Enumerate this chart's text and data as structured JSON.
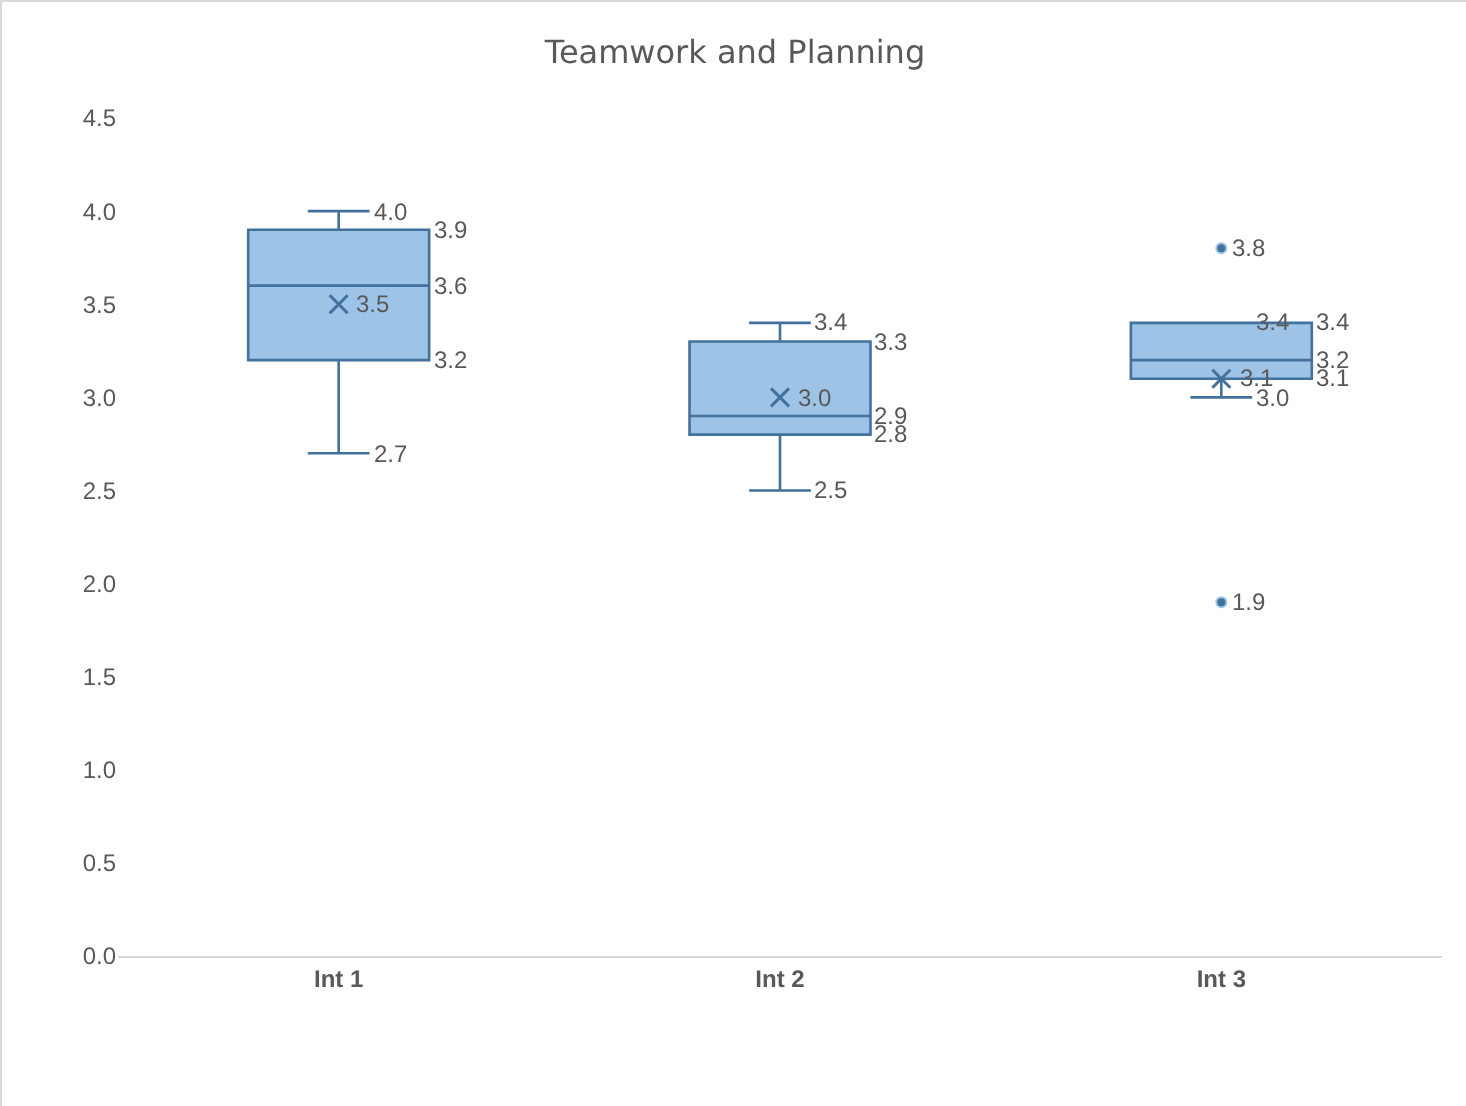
{
  "chart_data": {
    "type": "box",
    "title": "Teamwork and Planning",
    "categories": [
      "Int 1",
      "Int 2",
      "Int 3"
    ],
    "boxes": [
      {
        "low": 2.7,
        "q1": 3.2,
        "median": 3.6,
        "q3": 3.9,
        "high": 4.0,
        "mean": 3.5
      },
      {
        "low": 2.5,
        "q1": 2.8,
        "median": 2.9,
        "q3": 3.3,
        "high": 3.4,
        "mean": 3.0
      },
      {
        "low": 3.0,
        "q1": 3.1,
        "median": 3.2,
        "q3": 3.4,
        "high": 3.4,
        "mean": 3.1,
        "outliers": [
          3.8,
          1.9
        ]
      }
    ],
    "color": "#9dc3e6",
    "ylim": [
      0,
      4.5
    ],
    "yticks": [
      {
        "value": 0,
        "label": "0.0"
      },
      0.5,
      {
        "value": 1,
        "label": "1.0"
      },
      1.5,
      {
        "value": 2,
        "label": "2.0"
      },
      2.5,
      {
        "value": 3,
        "label": "3.0"
      },
      3.5,
      {
        "value": 4,
        "label": "4.0"
      },
      4.5
    ],
    "grid": false,
    "annotations": [
      "2.7",
      "3.2",
      "3.6",
      "3.9",
      "4.0",
      "3.5",
      "2.5",
      "2.8",
      "2.9",
      "3.3",
      "3.4",
      "3.0",
      "3.0",
      "3.1",
      "3.2",
      "3.4",
      "3.4",
      "3.1",
      "3.8",
      "1.9"
    ]
  }
}
